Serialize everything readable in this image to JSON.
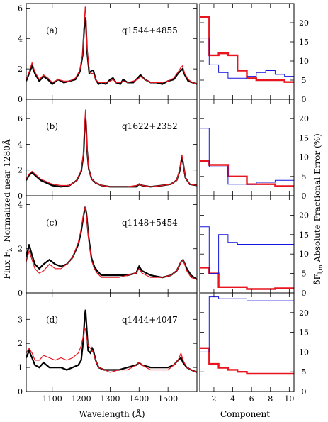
{
  "figure": {
    "x_label_left": "Wavelength (Å)",
    "x_label_right": "Component",
    "y_label_left": "Flux F",
    "y_label_left_sub": "λ",
    "y_label_left_rest": "Normalized near 1280Å",
    "y_label_right_pre": "δF",
    "y_label_right_sub": "l,m",
    "y_label_right_post": "Absolute Fractional Error (%)",
    "series_colors": {
      "black": "#000000",
      "red": "#e8141e",
      "blue": "#1414dc"
    }
  },
  "chart_data": [
    {
      "type": "line",
      "panel": "a",
      "label": "(a)",
      "object": "q1544+4855",
      "xlim": [
        1010,
        1600
      ],
      "ylim": [
        0,
        6.3
      ],
      "yticks": [
        0,
        2,
        4,
        6
      ],
      "xticks": [
        1100,
        1200,
        1300,
        1400,
        1500
      ],
      "series": [
        {
          "color": "black",
          "x": [
            1010,
            1020,
            1030,
            1040,
            1055,
            1070,
            1085,
            1100,
            1120,
            1140,
            1160,
            1180,
            1195,
            1205,
            1210,
            1214,
            1216,
            1220,
            1228,
            1236,
            1242,
            1250,
            1260,
            1270,
            1285,
            1300,
            1310,
            1320,
            1335,
            1345,
            1360,
            1380,
            1395,
            1405,
            1420,
            1440,
            1460,
            1480,
            1500,
            1520,
            1535,
            1545,
            1550,
            1558,
            1570,
            1585,
            1600
          ],
          "y": [
            1.2,
            1.7,
            2.2,
            1.7,
            1.2,
            1.5,
            1.3,
            1.0,
            1.3,
            1.1,
            1.2,
            1.3,
            1.8,
            2.9,
            4.6,
            5.4,
            5.2,
            3.2,
            1.7,
            1.9,
            1.9,
            1.3,
            1.0,
            1.1,
            1.0,
            1.3,
            1.4,
            1.1,
            1.0,
            1.3,
            1.1,
            1.1,
            1.4,
            1.6,
            1.3,
            1.1,
            1.1,
            1.0,
            1.2,
            1.3,
            1.7,
            1.9,
            2.0,
            1.6,
            1.2,
            1.1,
            1.0
          ]
        },
        {
          "color": "red",
          "x": [
            1010,
            1020,
            1030,
            1040,
            1055,
            1070,
            1085,
            1100,
            1120,
            1140,
            1160,
            1180,
            1195,
            1205,
            1210,
            1214,
            1216,
            1220,
            1228,
            1236,
            1242,
            1250,
            1260,
            1270,
            1285,
            1300,
            1310,
            1320,
            1335,
            1345,
            1360,
            1380,
            1395,
            1405,
            1420,
            1440,
            1460,
            1480,
            1500,
            1520,
            1535,
            1545,
            1550,
            1558,
            1570,
            1585,
            1600
          ],
          "y": [
            1.3,
            1.8,
            2.4,
            1.8,
            1.3,
            1.6,
            1.4,
            1.1,
            1.3,
            1.2,
            1.2,
            1.4,
            1.9,
            3.0,
            4.9,
            6.1,
            5.6,
            3.4,
            1.8,
            1.7,
            1.7,
            1.3,
            1.1,
            1.1,
            1.1,
            1.2,
            1.3,
            1.1,
            1.1,
            1.2,
            1.1,
            1.2,
            1.3,
            1.5,
            1.3,
            1.1,
            1.1,
            1.1,
            1.2,
            1.4,
            1.8,
            2.1,
            2.2,
            1.7,
            1.3,
            1.1,
            1.0
          ]
        }
      ]
    },
    {
      "type": "step",
      "panel": "a",
      "xlim": [
        0.5,
        10.5
      ],
      "ylim": [
        0,
        25
      ],
      "yticks": [
        0,
        5,
        10,
        15,
        20
      ],
      "xticks": [
        2,
        4,
        6,
        8,
        10
      ],
      "series": [
        {
          "color": "red",
          "x": [
            1,
            2,
            3,
            4,
            5,
            6,
            7,
            8,
            9,
            10
          ],
          "y": [
            21.5,
            11.5,
            12,
            11.5,
            7.5,
            5.5,
            5,
            5,
            5,
            4.5
          ]
        },
        {
          "color": "blue",
          "x": [
            1,
            2,
            3,
            4,
            5,
            6,
            7,
            8,
            9,
            10
          ],
          "y": [
            16,
            9,
            7,
            5.5,
            5.5,
            6,
            7,
            7.5,
            6.5,
            6
          ]
        }
      ]
    },
    {
      "type": "line",
      "panel": "b",
      "label": "(b)",
      "object": "q1622+2352",
      "xlim": [
        1010,
        1600
      ],
      "ylim": [
        0,
        7.5
      ],
      "yticks": [
        0,
        2,
        4,
        6
      ],
      "xticks": [
        1100,
        1200,
        1300,
        1400,
        1500
      ],
      "series": [
        {
          "color": "black",
          "x": [
            1010,
            1020,
            1030,
            1045,
            1060,
            1080,
            1100,
            1130,
            1160,
            1185,
            1200,
            1208,
            1212,
            1215,
            1217,
            1220,
            1226,
            1236,
            1250,
            1270,
            1300,
            1330,
            1360,
            1390,
            1400,
            1410,
            1440,
            1480,
            1510,
            1530,
            1540,
            1545,
            1548,
            1552,
            1560,
            1575,
            1600
          ],
          "y": [
            1.2,
            1.6,
            1.8,
            1.5,
            1.2,
            1.0,
            0.8,
            0.7,
            0.8,
            1.2,
            1.9,
            3.2,
            5.3,
            6.1,
            5.5,
            3.6,
            2.1,
            1.3,
            1.0,
            0.8,
            0.7,
            0.7,
            0.7,
            0.7,
            0.9,
            0.8,
            0.7,
            0.8,
            0.9,
            1.2,
            1.9,
            2.6,
            3.0,
            2.6,
            1.4,
            0.9,
            0.8
          ]
        },
        {
          "color": "red",
          "x": [
            1010,
            1020,
            1030,
            1045,
            1060,
            1080,
            1100,
            1130,
            1160,
            1185,
            1200,
            1208,
            1212,
            1215,
            1217,
            1220,
            1226,
            1236,
            1250,
            1270,
            1300,
            1330,
            1360,
            1390,
            1400,
            1410,
            1440,
            1480,
            1510,
            1530,
            1540,
            1545,
            1548,
            1552,
            1560,
            1575,
            1600
          ],
          "y": [
            1.3,
            1.7,
            1.9,
            1.6,
            1.3,
            1.1,
            0.9,
            0.8,
            0.8,
            1.2,
            2.0,
            3.4,
            5.6,
            6.7,
            5.8,
            3.7,
            2.1,
            1.3,
            1.0,
            0.8,
            0.7,
            0.7,
            0.7,
            0.8,
            0.9,
            0.8,
            0.7,
            0.8,
            0.9,
            1.2,
            2.0,
            2.8,
            3.2,
            2.7,
            1.4,
            0.9,
            0.8
          ]
        }
      ]
    },
    {
      "type": "step",
      "panel": "b",
      "xlim": [
        0.5,
        10.5
      ],
      "ylim": [
        0,
        25
      ],
      "yticks": [
        0,
        5,
        10,
        15,
        20
      ],
      "xticks": [
        2,
        4,
        6,
        8,
        10
      ],
      "series": [
        {
          "color": "red",
          "x": [
            1,
            2,
            3,
            4,
            5,
            6,
            7,
            8,
            9,
            10
          ],
          "y": [
            9,
            8,
            8,
            5,
            5,
            3,
            3,
            3,
            2.5,
            2.5
          ]
        },
        {
          "color": "blue",
          "x": [
            1,
            2,
            3,
            4,
            5,
            6,
            7,
            8,
            9,
            10
          ],
          "y": [
            17.5,
            7.5,
            7.5,
            3,
            3,
            3,
            3.5,
            3.5,
            4,
            4
          ]
        }
      ]
    },
    {
      "type": "line",
      "panel": "c",
      "label": "(c)",
      "object": "q1148+5454",
      "xlim": [
        1010,
        1600
      ],
      "ylim": [
        0,
        4.4
      ],
      "yticks": [
        0,
        2,
        4
      ],
      "xticks": [
        1100,
        1200,
        1300,
        1400,
        1500
      ],
      "series": [
        {
          "color": "black",
          "x": [
            1010,
            1020,
            1030,
            1040,
            1055,
            1070,
            1090,
            1110,
            1130,
            1150,
            1170,
            1190,
            1200,
            1208,
            1214,
            1218,
            1225,
            1235,
            1245,
            1255,
            1270,
            1300,
            1330,
            1360,
            1390,
            1400,
            1410,
            1440,
            1480,
            1510,
            1530,
            1545,
            1552,
            1565,
            1580,
            1600
          ],
          "y": [
            1.6,
            2.2,
            1.7,
            1.3,
            1.1,
            1.3,
            1.5,
            1.3,
            1.2,
            1.3,
            1.6,
            2.2,
            2.8,
            3.5,
            3.9,
            3.6,
            2.6,
            1.6,
            1.2,
            1.0,
            0.8,
            0.8,
            0.8,
            0.8,
            0.9,
            1.2,
            1.0,
            0.8,
            0.7,
            0.8,
            1.0,
            1.4,
            1.5,
            1.1,
            0.8,
            0.6
          ]
        },
        {
          "color": "red",
          "x": [
            1010,
            1020,
            1030,
            1040,
            1055,
            1070,
            1090,
            1110,
            1130,
            1150,
            1170,
            1190,
            1200,
            1208,
            1214,
            1218,
            1225,
            1235,
            1245,
            1255,
            1270,
            1300,
            1330,
            1360,
            1390,
            1400,
            1410,
            1440,
            1480,
            1510,
            1530,
            1545,
            1552,
            1565,
            1580,
            1600
          ],
          "y": [
            1.4,
            1.9,
            1.5,
            1.1,
            0.9,
            1.0,
            1.3,
            1.1,
            1.1,
            1.3,
            1.6,
            2.3,
            2.9,
            3.6,
            3.9,
            3.5,
            2.5,
            1.5,
            1.1,
            0.9,
            0.7,
            0.7,
            0.7,
            0.8,
            0.9,
            1.1,
            0.9,
            0.7,
            0.7,
            0.8,
            1.0,
            1.4,
            1.5,
            1.0,
            0.7,
            0.6
          ]
        }
      ]
    },
    {
      "type": "step",
      "panel": "c",
      "xlim": [
        0.5,
        10.5
      ],
      "ylim": [
        0,
        25
      ],
      "yticks": [
        0,
        5,
        10,
        15,
        20
      ],
      "xticks": [
        2,
        4,
        6,
        8,
        10
      ],
      "series": [
        {
          "color": "red",
          "x": [
            1,
            2,
            3,
            4,
            5,
            6,
            7,
            8,
            9,
            10
          ],
          "y": [
            6.5,
            5,
            1.5,
            1.5,
            1.5,
            1,
            1,
            1,
            1.2,
            1.2
          ]
        },
        {
          "color": "blue",
          "x": [
            1,
            2,
            3,
            4,
            5,
            6,
            7,
            8,
            9,
            10
          ],
          "y": [
            17,
            5,
            15,
            13,
            12.5,
            12.5,
            12.5,
            12.5,
            12.5,
            12.5
          ]
        }
      ]
    },
    {
      "type": "line",
      "panel": "d",
      "label": "(d)",
      "object": "q1444+4047",
      "xlim": [
        1010,
        1600
      ],
      "ylim": [
        0,
        4.1
      ],
      "yticks": [
        0,
        1,
        2,
        3
      ],
      "xticks": [
        1100,
        1200,
        1300,
        1400,
        1500
      ],
      "series": [
        {
          "color": "black",
          "x": [
            1010,
            1020,
            1030,
            1040,
            1055,
            1070,
            1090,
            1110,
            1130,
            1150,
            1170,
            1190,
            1200,
            1207,
            1212,
            1215,
            1218,
            1224,
            1232,
            1238,
            1242,
            1250,
            1260,
            1280,
            1300,
            1330,
            1360,
            1390,
            1400,
            1410,
            1440,
            1470,
            1500,
            1520,
            1535,
            1545,
            1552,
            1565,
            1580,
            1600
          ],
          "y": [
            1.4,
            1.7,
            1.4,
            1.1,
            1.0,
            1.2,
            1.0,
            1.0,
            1.0,
            0.9,
            1.0,
            1.1,
            1.3,
            2.1,
            3.1,
            3.4,
            2.8,
            1.7,
            1.6,
            1.8,
            1.7,
            1.3,
            1.0,
            0.9,
            0.9,
            0.9,
            1.0,
            1.1,
            1.2,
            1.1,
            1.0,
            1.0,
            1.0,
            1.1,
            1.3,
            1.4,
            1.2,
            1.0,
            0.9,
            0.8
          ]
        },
        {
          "color": "red",
          "x": [
            1010,
            1020,
            1030,
            1040,
            1055,
            1070,
            1090,
            1110,
            1130,
            1150,
            1170,
            1190,
            1200,
            1207,
            1212,
            1215,
            1218,
            1224,
            1232,
            1238,
            1242,
            1250,
            1260,
            1280,
            1300,
            1330,
            1360,
            1390,
            1400,
            1410,
            1440,
            1470,
            1500,
            1520,
            1535,
            1545,
            1552,
            1565,
            1580,
            1600
          ],
          "y": [
            1.6,
            1.8,
            1.6,
            1.3,
            1.3,
            1.5,
            1.4,
            1.3,
            1.4,
            1.3,
            1.4,
            1.6,
            1.9,
            2.3,
            2.6,
            2.6,
            2.3,
            1.9,
            1.8,
            1.7,
            1.6,
            1.3,
            1.0,
            0.9,
            0.8,
            0.9,
            0.9,
            1.1,
            1.2,
            1.1,
            0.9,
            0.9,
            0.9,
            1.1,
            1.3,
            1.6,
            1.3,
            1.0,
            0.9,
            0.8
          ]
        }
      ]
    },
    {
      "type": "step",
      "panel": "d",
      "xlim": [
        0.5,
        10.5
      ],
      "ylim": [
        0,
        25
      ],
      "yticks": [
        0,
        5,
        10,
        15,
        20
      ],
      "xticks": [
        2,
        4,
        6,
        8,
        10
      ],
      "series": [
        {
          "color": "red",
          "x": [
            1,
            2,
            3,
            4,
            5,
            6,
            7,
            8,
            9,
            10
          ],
          "y": [
            11,
            7,
            6,
            5.5,
            5,
            4.5,
            4.5,
            4.5,
            4.5,
            4.5
          ]
        },
        {
          "color": "blue",
          "x": [
            1,
            2,
            3,
            4,
            5,
            6,
            7,
            8,
            9,
            10
          ],
          "y": [
            10,
            24,
            23.5,
            23.5,
            23.5,
            23,
            23,
            23,
            23,
            23
          ]
        }
      ]
    }
  ]
}
